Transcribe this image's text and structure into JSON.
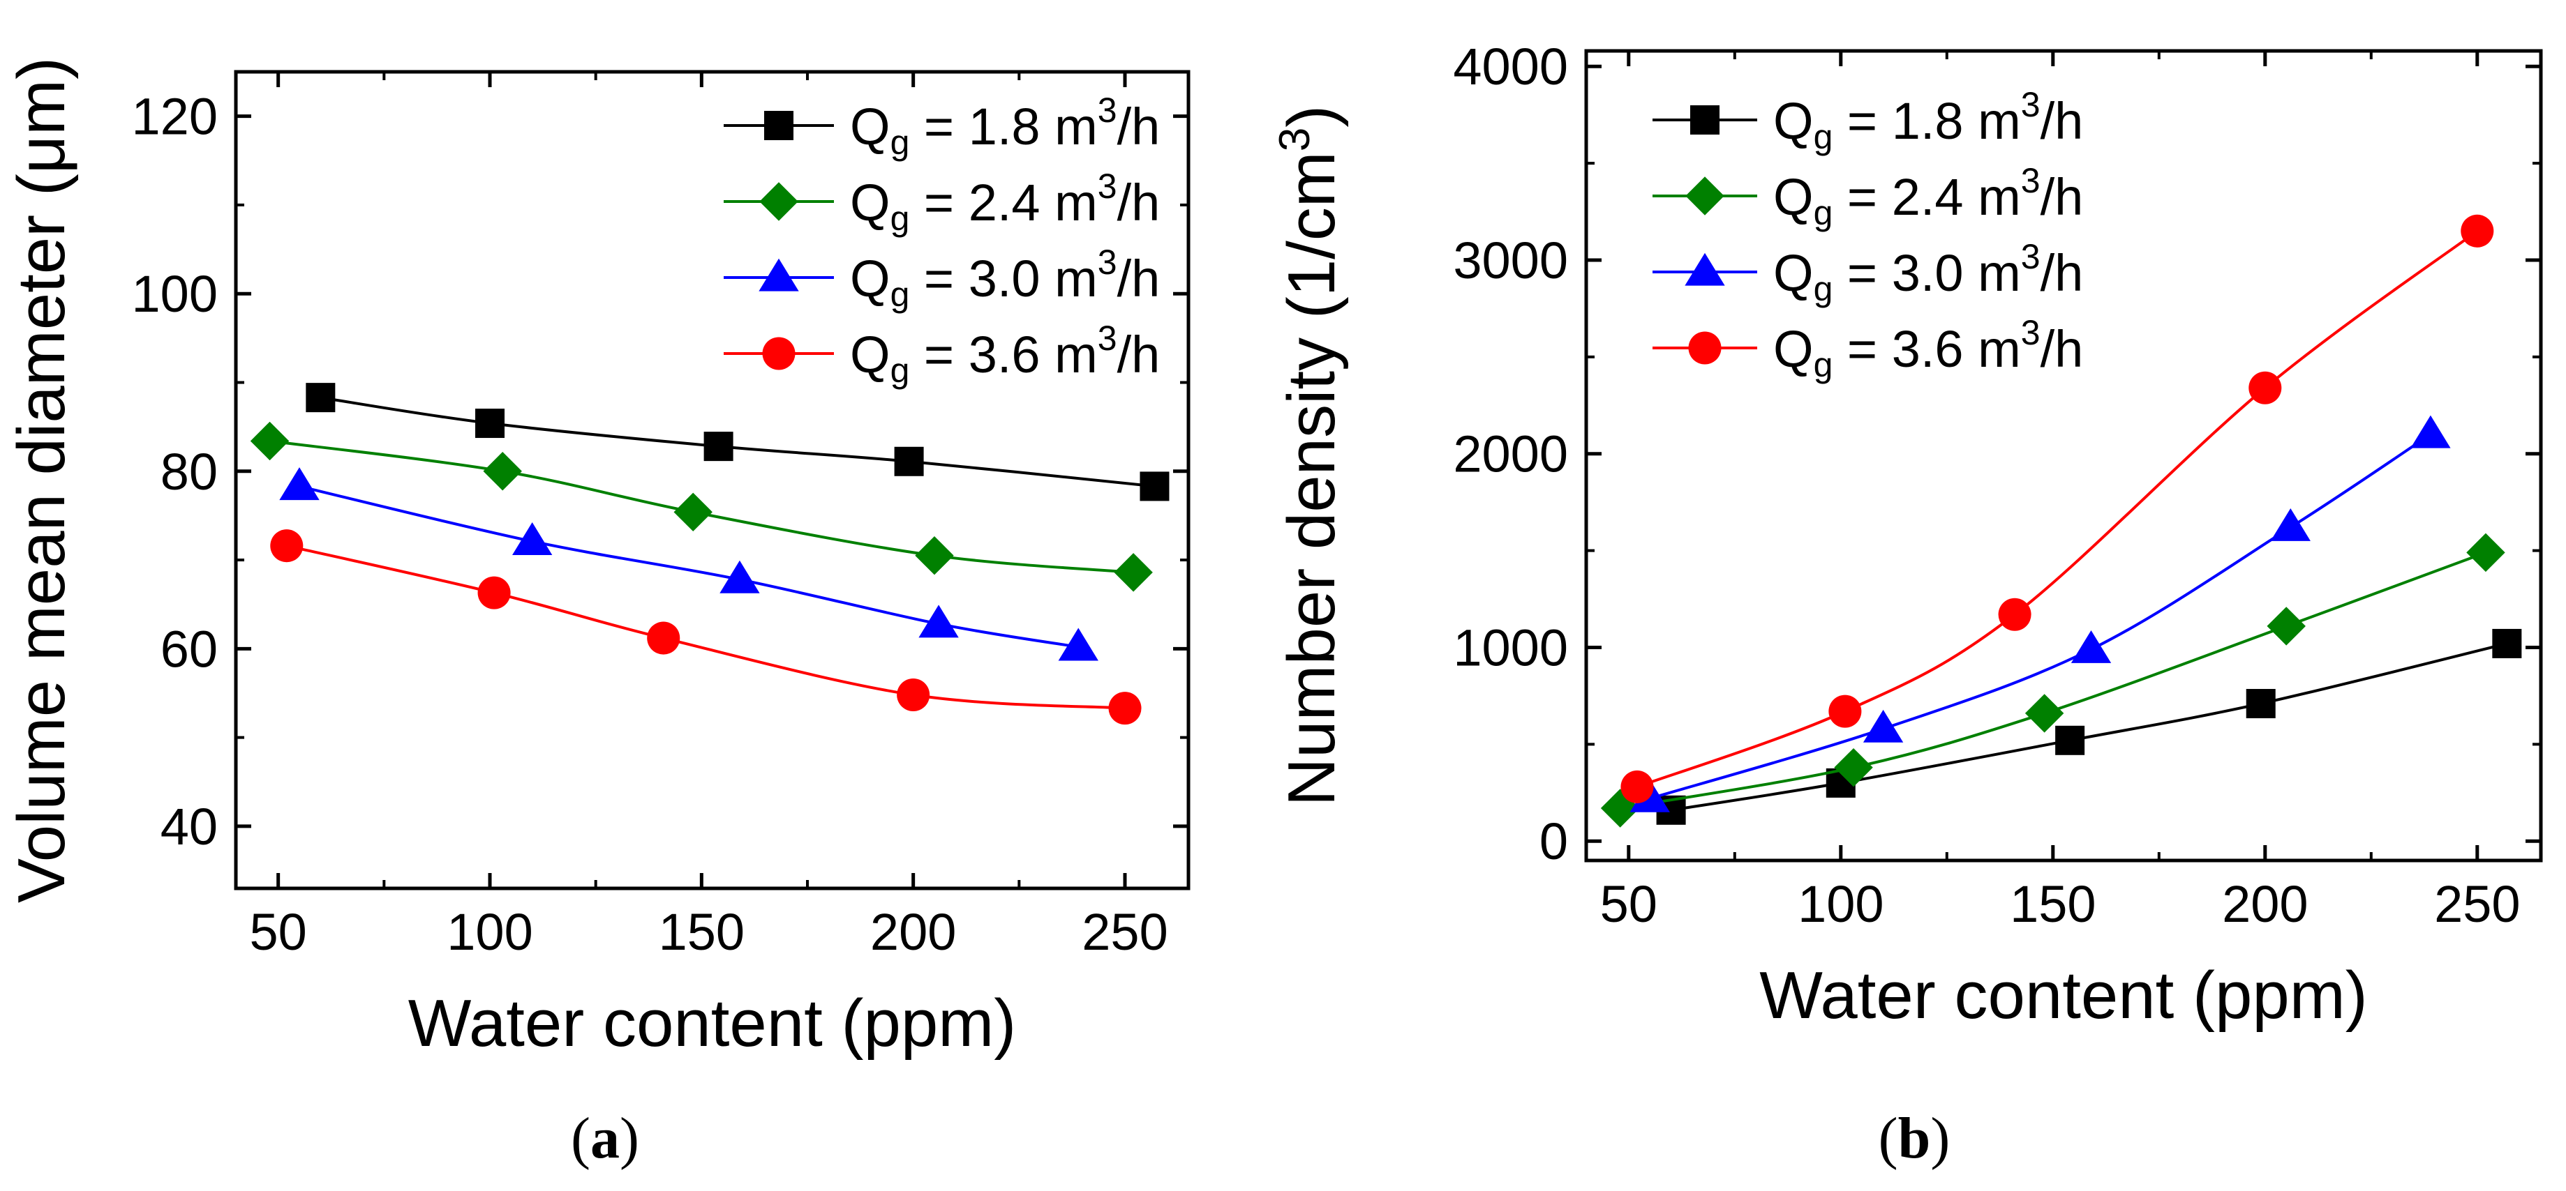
{
  "figure": {
    "panel_labels": [
      "a",
      "b"
    ],
    "legend_prefix": "Q",
    "legend_subscript": "g",
    "legend_unit_base": "m",
    "legend_unit_exp": "3",
    "legend_unit_tail": "/h"
  },
  "chart_data": [
    {
      "type": "line",
      "panel": "a",
      "title": "",
      "xlabel": "Water content (ppm)",
      "ylabel": "Volume mean diameter (μm)",
      "xlim": [
        40,
        265
      ],
      "ylim": [
        33,
        125
      ],
      "xticks": [
        50,
        100,
        150,
        200,
        250
      ],
      "xticks_minor": [
        75,
        125,
        175,
        225
      ],
      "yticks": [
        40,
        60,
        80,
        100,
        120
      ],
      "yticks_minor": [
        50,
        70,
        90,
        110
      ],
      "legend_position": "top-right",
      "grid": false,
      "series": [
        {
          "name": "Q_g = 1.8 m³/h",
          "value_label": "1.8",
          "color": "#000000",
          "marker": "square",
          "x": [
            60,
            100,
            154,
            199,
            257
          ],
          "y": [
            88.3,
            85.4,
            82.8,
            81.1,
            78.3
          ]
        },
        {
          "name": "Q_g = 2.4 m³/h",
          "value_label": "2.4",
          "color": "#008000",
          "marker": "diamond",
          "x": [
            48,
            103,
            148,
            205,
            252
          ],
          "y": [
            83.4,
            80.0,
            75.4,
            70.5,
            68.6
          ]
        },
        {
          "name": "Q_g = 3.0 m³/h",
          "value_label": "3.0",
          "color": "#0000ff",
          "marker": "triangle",
          "x": [
            55,
            110,
            159,
            206,
            239
          ],
          "y": [
            78.3,
            72.1,
            67.8,
            62.8,
            60.2
          ]
        },
        {
          "name": "Q_g = 3.6 m³/h",
          "value_label": "3.6",
          "color": "#ff0000",
          "marker": "circle",
          "x": [
            52,
            101,
            141,
            200,
            250
          ],
          "y": [
            71.6,
            66.3,
            61.2,
            54.8,
            53.3
          ]
        }
      ]
    },
    {
      "type": "line",
      "panel": "b",
      "title": "",
      "xlabel": "Water content (ppm)",
      "ylabel": "Number density (1/cm³)",
      "xlim": [
        40,
        265
      ],
      "ylim": [
        -100,
        4080
      ],
      "xticks": [
        50,
        100,
        150,
        200,
        250
      ],
      "xticks_minor": [
        75,
        125,
        175,
        225
      ],
      "yticks": [
        0,
        1000,
        2000,
        3000,
        4000
      ],
      "yticks_minor": [
        500,
        1500,
        2500,
        3500
      ],
      "legend_position": "top-left",
      "grid": false,
      "series": [
        {
          "name": "Q_g = 1.8 m³/h",
          "value_label": "1.8",
          "color": "#000000",
          "marker": "square",
          "x": [
            60,
            100,
            154,
            199,
            257
          ],
          "y": [
            160,
            300,
            520,
            710,
            1020
          ]
        },
        {
          "name": "Q_g = 2.4 m³/h",
          "value_label": "2.4",
          "color": "#008000",
          "marker": "diamond",
          "x": [
            48,
            103,
            148,
            205,
            252
          ],
          "y": [
            170,
            380,
            660,
            1110,
            1490
          ]
        },
        {
          "name": "Q_g = 3.0 m³/h",
          "value_label": "3.0",
          "color": "#0000ff",
          "marker": "triangle",
          "x": [
            55,
            110,
            159,
            206,
            239
          ],
          "y": [
            220,
            580,
            990,
            1620,
            2100
          ]
        },
        {
          "name": "Q_g = 3.6 m³/h",
          "value_label": "3.6",
          "color": "#ff0000",
          "marker": "circle",
          "x": [
            52,
            101,
            141,
            200,
            250
          ],
          "y": [
            280,
            670,
            1170,
            2340,
            3150
          ]
        }
      ]
    }
  ]
}
